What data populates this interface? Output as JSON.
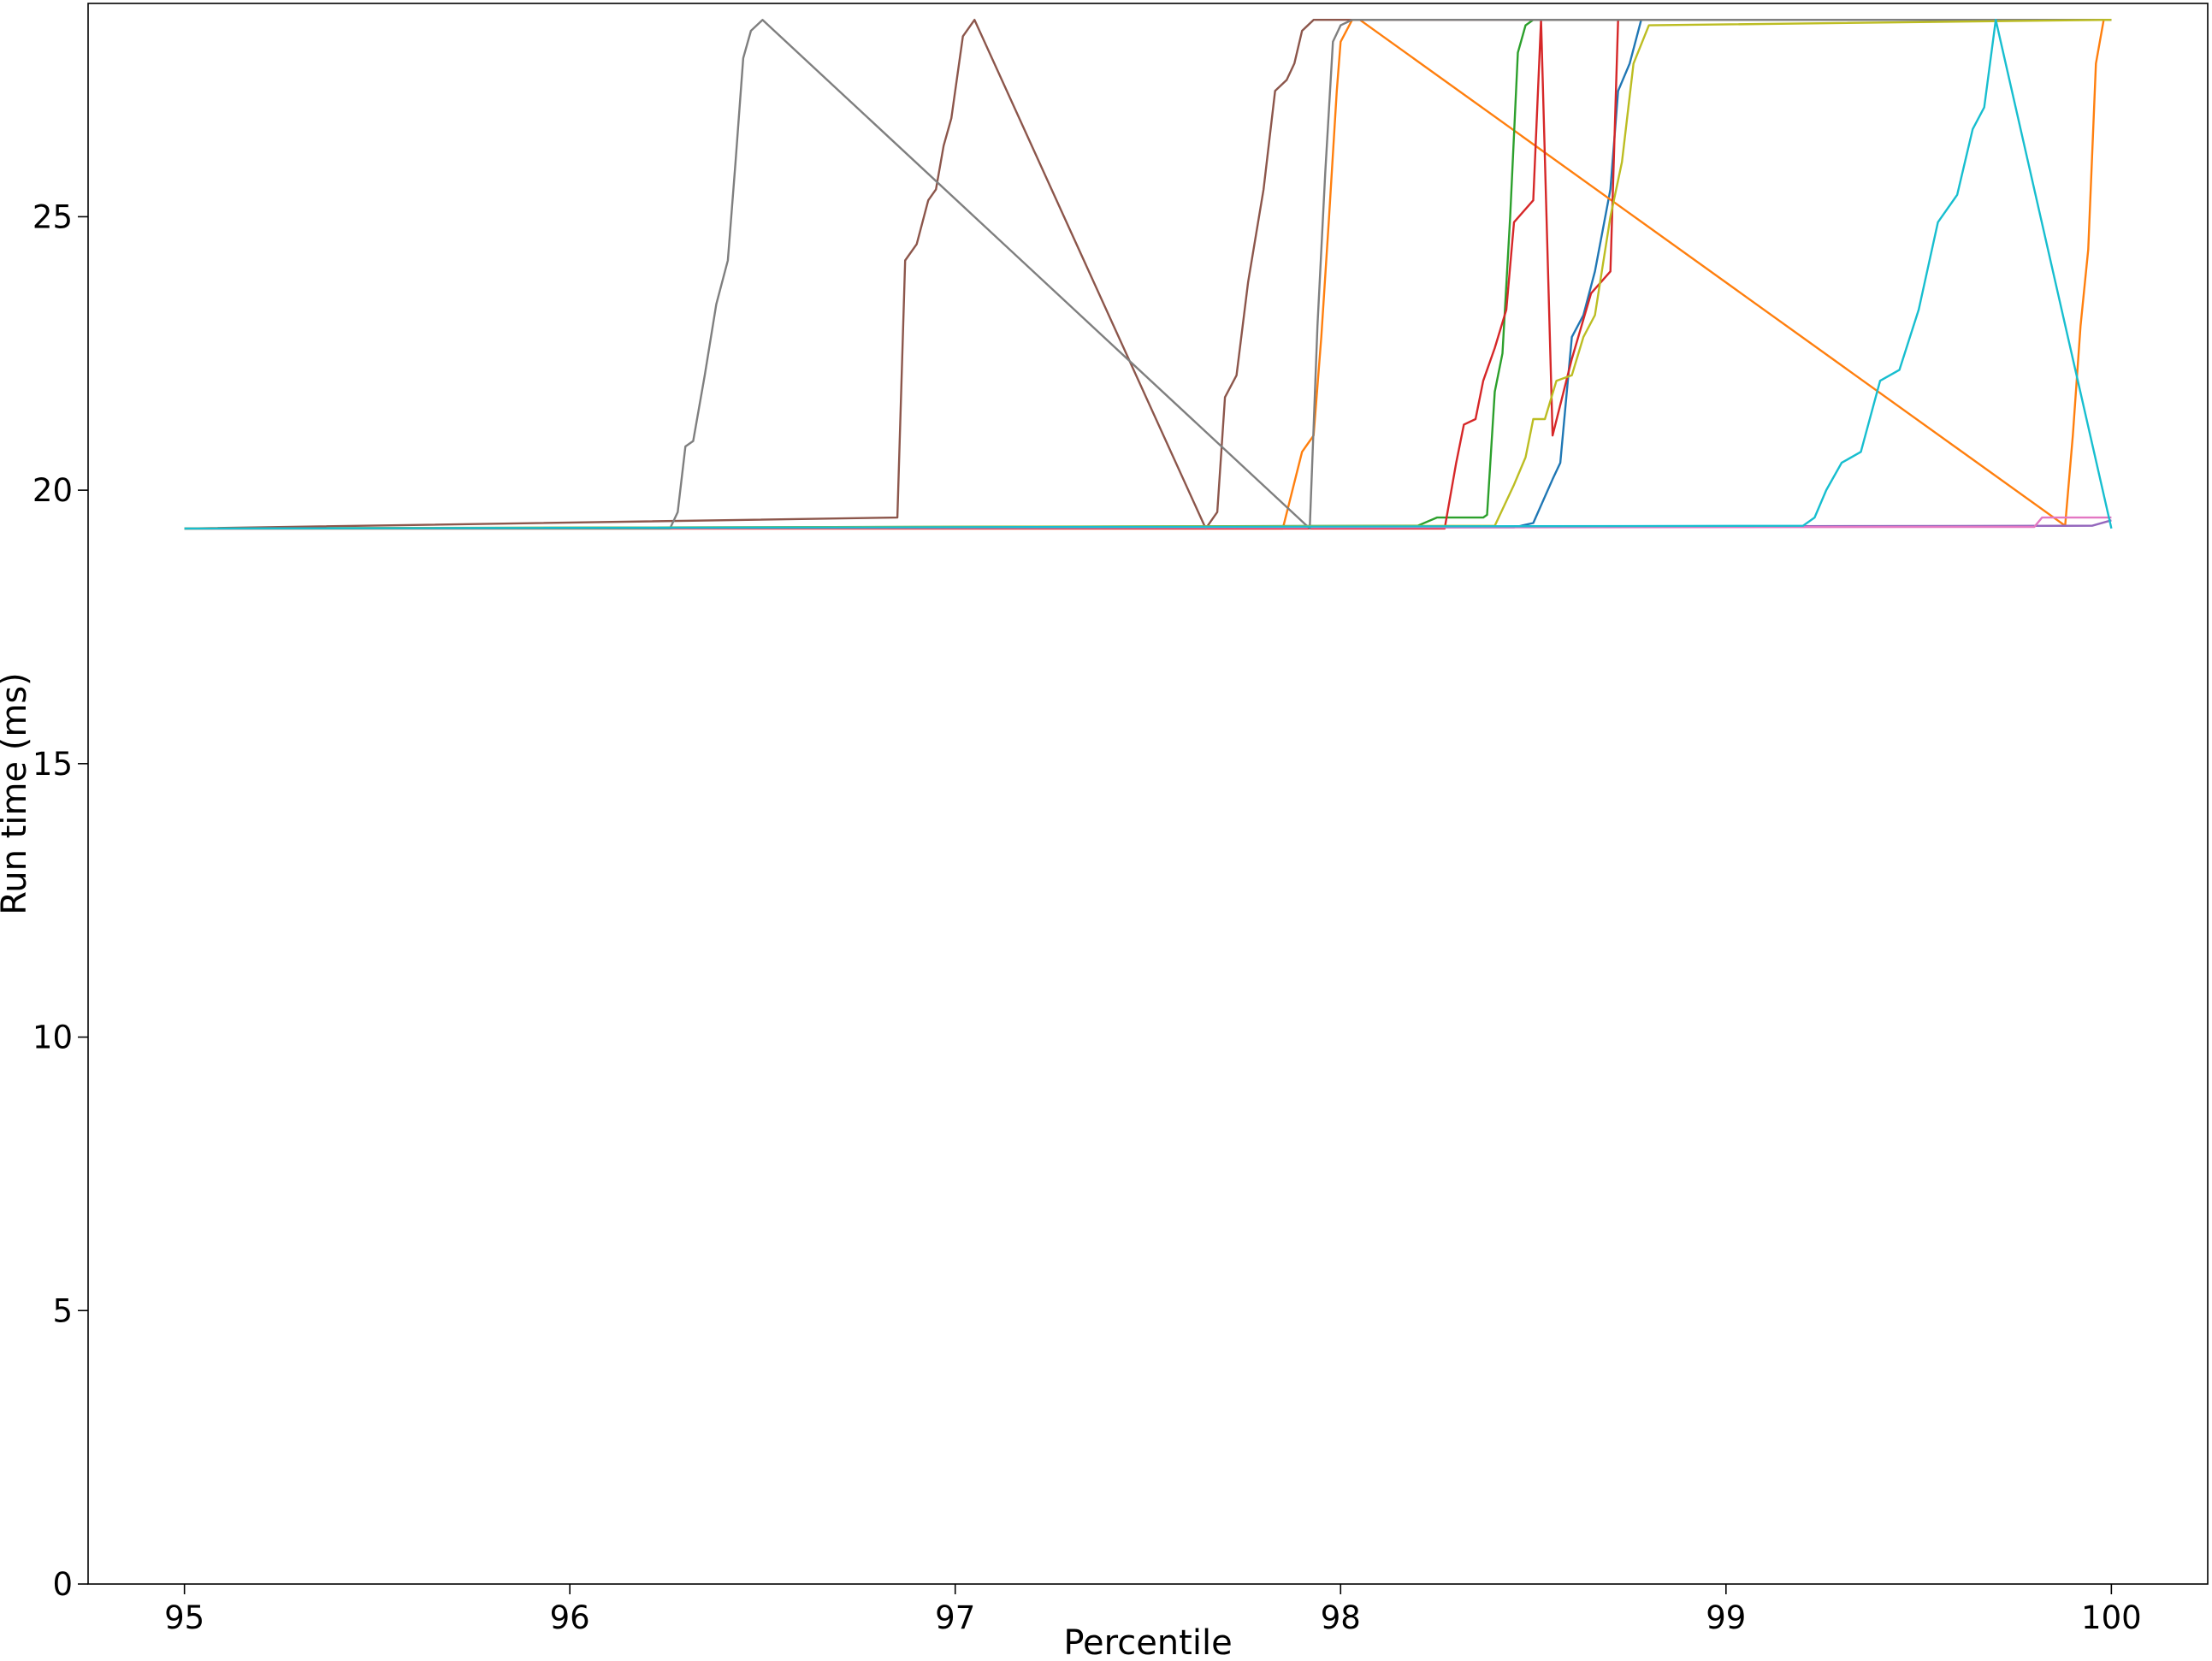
{
  "chart_data": {
    "type": "line",
    "title": "",
    "xlabel": "Percentile",
    "ylabel": "Run time (ms)",
    "xlim": [
      94.75,
      100.25
    ],
    "ylim": [
      0,
      28.9
    ],
    "xticks": [
      95,
      96,
      97,
      98,
      99,
      100
    ],
    "yticks": [
      0,
      5,
      10,
      15,
      20,
      25
    ],
    "grid": false,
    "legend": "none",
    "series": [
      {
        "color": "#1f77b4",
        "x": [
          95,
          98.45,
          98.5,
          98.55,
          98.57,
          98.6,
          98.63,
          98.66,
          98.7,
          98.72,
          98.75,
          98.78,
          100
        ],
        "y": [
          19.3,
          19.32,
          19.4,
          20.2,
          20.5,
          22.8,
          23.2,
          24.0,
          25.5,
          27.3,
          27.8,
          28.6,
          28.6
        ]
      },
      {
        "color": "#ff7f0e",
        "x": [
          95,
          97.85,
          97.9,
          97.93,
          97.95,
          97.97,
          97.99,
          98.0,
          98.03,
          98.05,
          99.88,
          99.9,
          99.92,
          99.94,
          99.96,
          99.98,
          100
        ],
        "y": [
          19.3,
          19.3,
          20.7,
          21.0,
          22.8,
          25.0,
          27.3,
          28.2,
          28.6,
          28.6,
          19.35,
          21.0,
          23.0,
          24.4,
          27.8,
          28.6,
          28.6
        ]
      },
      {
        "color": "#2ca02c",
        "x": [
          95,
          98.2,
          98.25,
          98.37,
          98.38,
          98.4,
          98.42,
          98.44,
          98.46,
          98.48,
          98.5,
          100
        ],
        "y": [
          19.3,
          19.35,
          19.5,
          19.5,
          19.55,
          21.8,
          22.5,
          25.0,
          28.0,
          28.5,
          28.6,
          28.6
        ]
      },
      {
        "color": "#d62728",
        "x": [
          95,
          98.27,
          98.3,
          98.32,
          98.35,
          98.37,
          98.4,
          98.43,
          98.45,
          98.5,
          98.52,
          98.55,
          98.6,
          98.65,
          98.7,
          98.72
        ],
        "y": [
          19.3,
          19.3,
          20.5,
          21.2,
          21.3,
          22.0,
          22.6,
          23.3,
          24.9,
          25.3,
          28.6,
          21.0,
          22.4,
          23.6,
          24.0,
          28.6
        ]
      },
      {
        "color": "#9467bd",
        "x": [
          95,
          99.95,
          100
        ],
        "y": [
          19.3,
          19.35,
          19.45
        ]
      },
      {
        "color": "#8c564b",
        "x": [
          95,
          96.85,
          96.87,
          96.9,
          96.93,
          96.95,
          96.97,
          96.99,
          97.02,
          97.05,
          97.65,
          97.68,
          97.7,
          97.73,
          97.76,
          97.8,
          97.83,
          97.86,
          97.88,
          97.9,
          97.93,
          100
        ],
        "y": [
          19.3,
          19.5,
          24.2,
          24.5,
          25.3,
          25.5,
          26.3,
          26.8,
          28.3,
          28.6,
          19.3,
          19.6,
          21.7,
          22.1,
          23.8,
          25.5,
          27.3,
          27.5,
          27.8,
          28.4,
          28.6,
          28.6
        ]
      },
      {
        "color": "#e377c2",
        "x": [
          95,
          99.8,
          99.82,
          99.85,
          100
        ],
        "y": [
          19.3,
          19.33,
          19.5,
          19.5,
          19.5
        ]
      },
      {
        "color": "#7f7f7f",
        "x": [
          95,
          96.26,
          96.28,
          96.3,
          96.32,
          96.35,
          96.38,
          96.41,
          96.43,
          96.45,
          96.47,
          96.5,
          97.92,
          97.94,
          97.96,
          97.98,
          98.0,
          98.03,
          100
        ],
        "y": [
          19.3,
          19.3,
          19.6,
          20.8,
          20.9,
          22.1,
          23.4,
          24.2,
          26.0,
          27.9,
          28.4,
          28.6,
          19.3,
          23.0,
          25.8,
          28.2,
          28.5,
          28.6,
          28.6
        ]
      },
      {
        "color": "#bcbd22",
        "x": [
          95,
          98.4,
          98.45,
          98.48,
          98.5,
          98.53,
          98.56,
          98.6,
          98.63,
          98.66,
          98.7,
          98.73,
          98.76,
          98.8,
          100
        ],
        "y": [
          19.3,
          19.35,
          20.1,
          20.6,
          21.3,
          21.3,
          22.0,
          22.1,
          22.8,
          23.2,
          25.0,
          26.0,
          27.8,
          28.5,
          28.6
        ]
      },
      {
        "color": "#17becf",
        "x": [
          95,
          99.2,
          99.23,
          99.26,
          99.3,
          99.35,
          99.4,
          99.45,
          99.5,
          99.55,
          99.6,
          99.64,
          99.67,
          99.7,
          100
        ],
        "y": [
          19.3,
          19.35,
          19.5,
          20.0,
          20.5,
          20.7,
          22.0,
          22.2,
          23.3,
          24.9,
          25.4,
          26.6,
          27.0,
          28.6,
          19.3
        ]
      }
    ]
  }
}
